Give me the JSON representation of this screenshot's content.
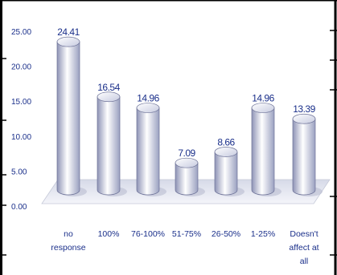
{
  "chart_data": {
    "type": "bar",
    "categories": [
      [
        "no",
        "response"
      ],
      [
        "100%"
      ],
      [
        "76-100%"
      ],
      [
        "51-75%"
      ],
      [
        "26-50%"
      ],
      [
        "1-25%"
      ],
      [
        "Doesn't",
        "affect at",
        "all"
      ]
    ],
    "values": [
      24.41,
      16.54,
      14.96,
      7.09,
      8.66,
      14.96,
      13.39
    ],
    "value_labels": [
      "24.41",
      "16.54",
      "14.96",
      "7.09",
      "8.66",
      "14.96",
      "13.39"
    ],
    "y_ticks": [
      "0.00",
      "5.00",
      "10.00",
      "15.00",
      "20.00",
      "25.00"
    ],
    "ylim": [
      0,
      25
    ],
    "grid": false,
    "legend": "none",
    "title": "",
    "xlabel": "",
    "ylabel": "",
    "colors": {
      "text": "#1a2f8a",
      "bar_dark": "#8e93b5",
      "bar_light": "#ffffff",
      "floor": "#e8ebf2",
      "border": "#000000"
    }
  }
}
